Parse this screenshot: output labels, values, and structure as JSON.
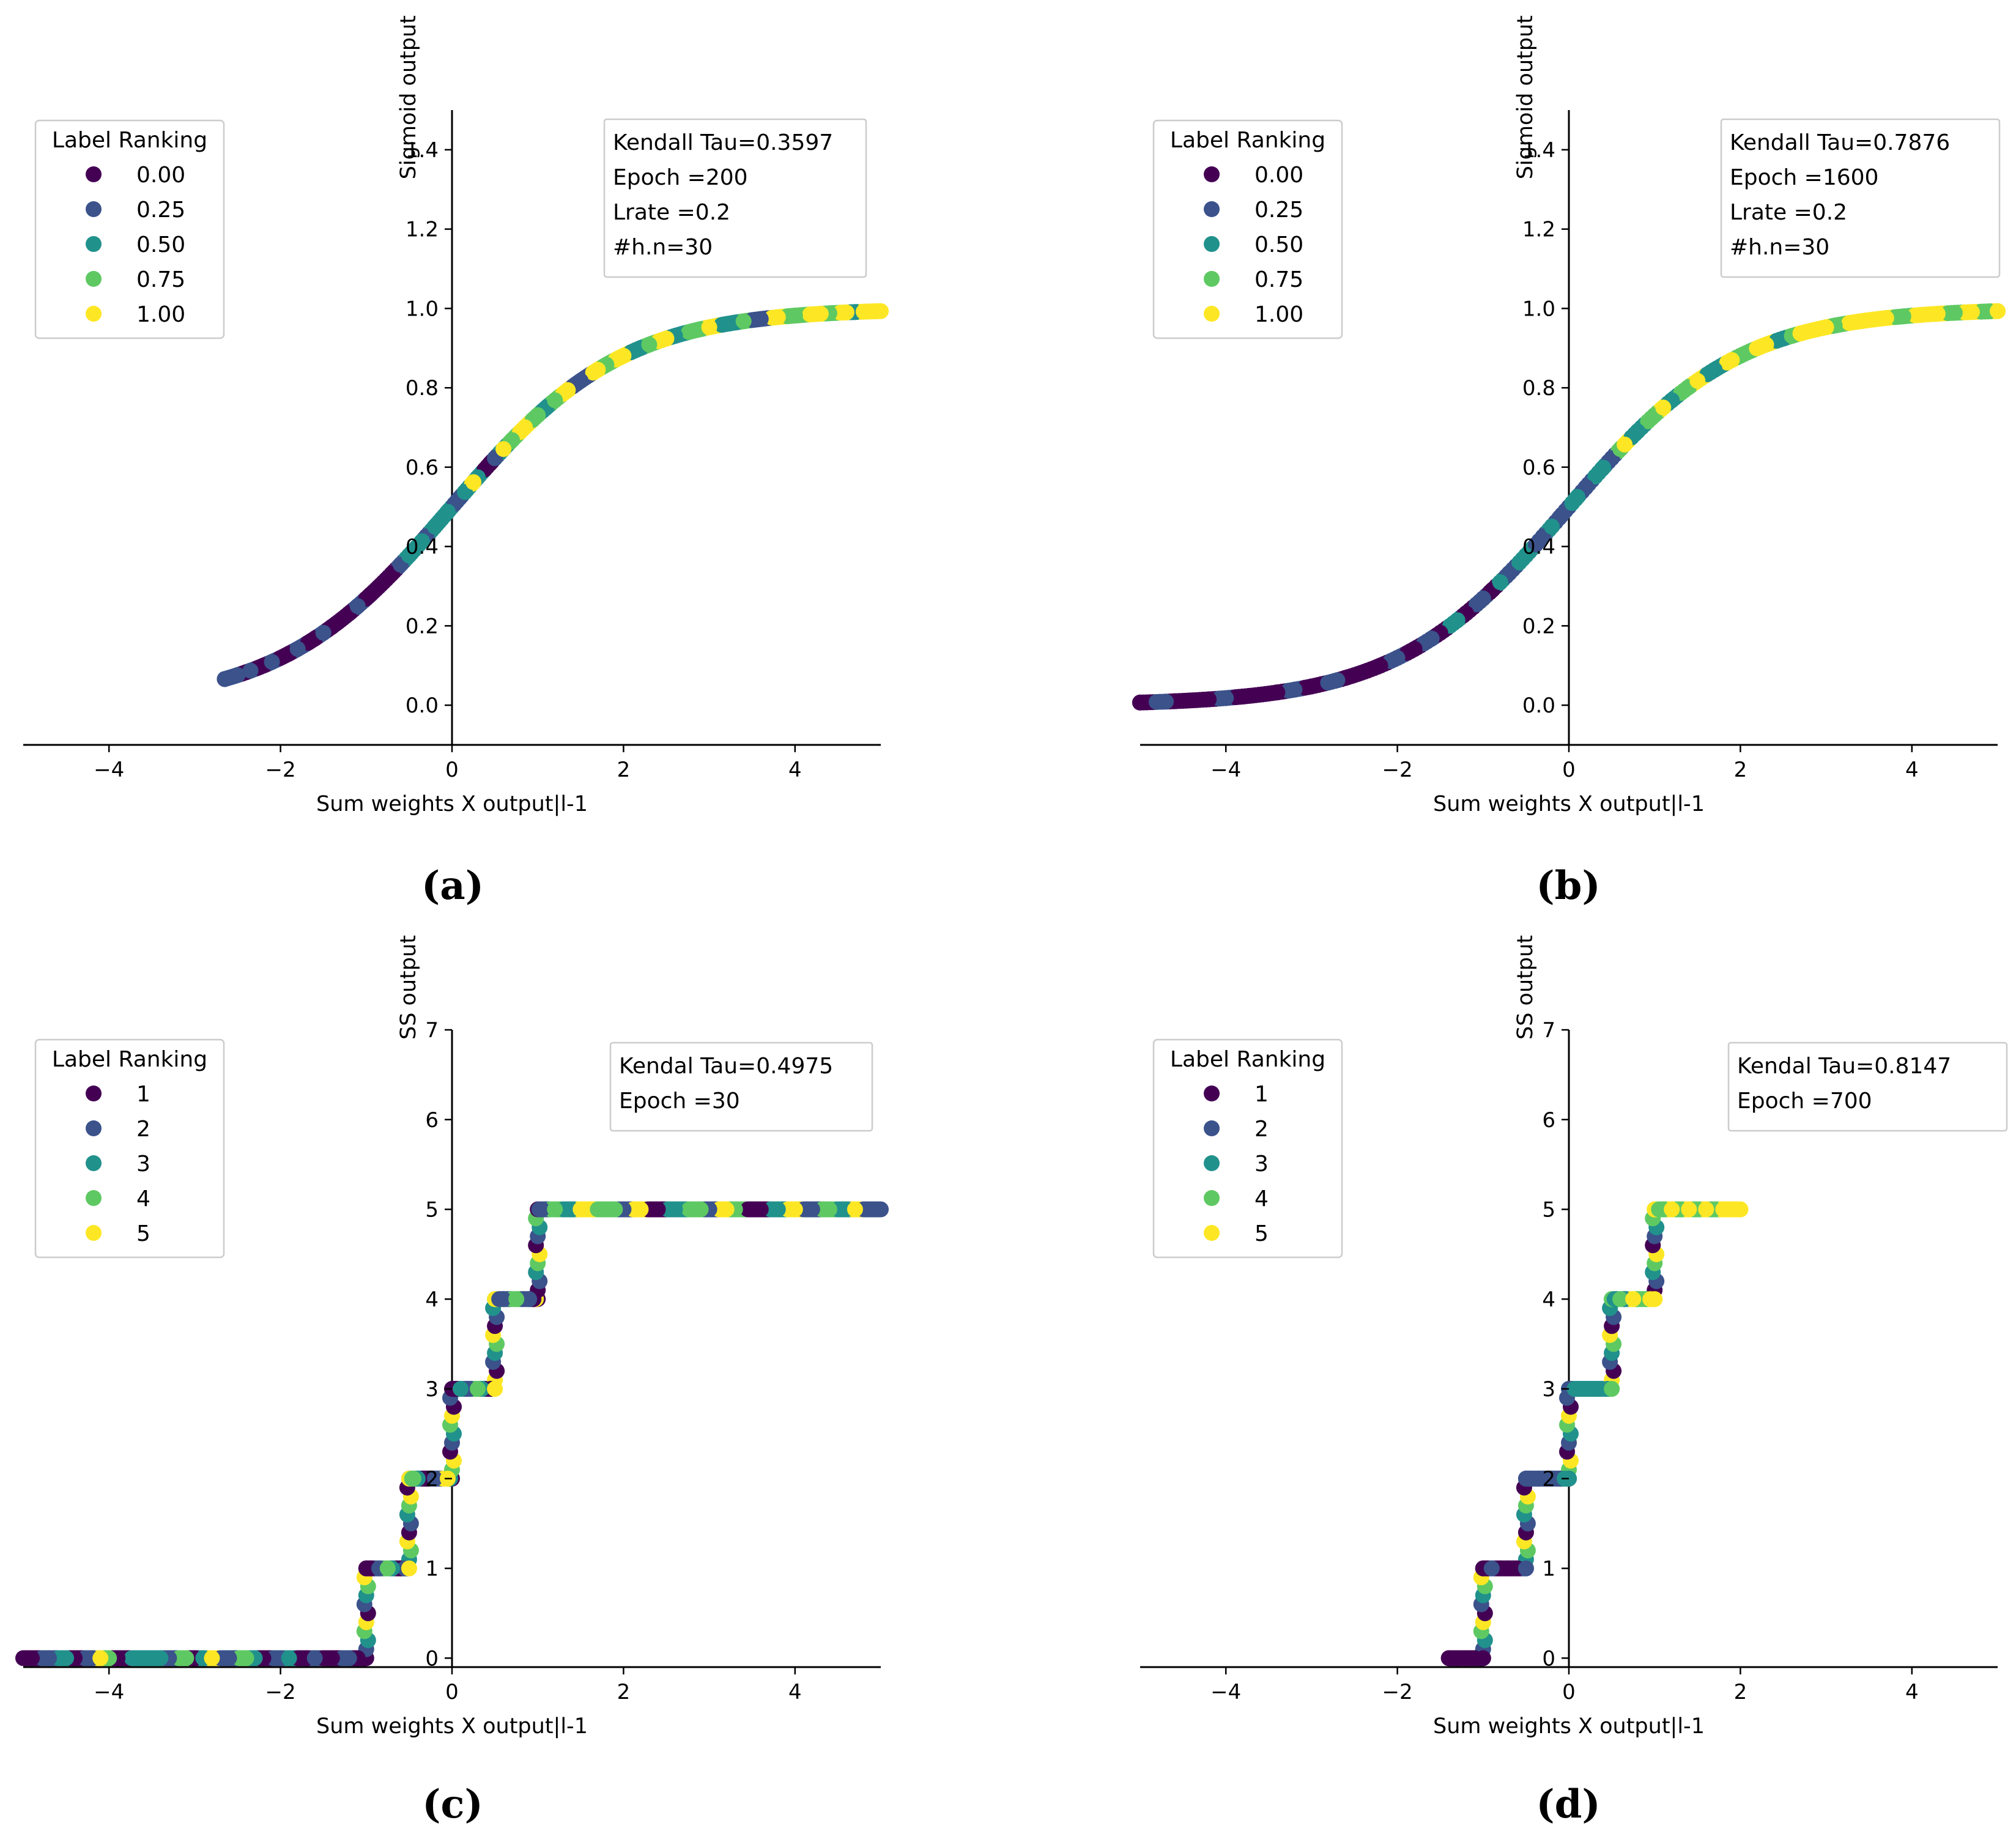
{
  "colors": {
    "viridis": [
      "#440154",
      "#3b528b",
      "#21918c",
      "#5ec962",
      "#fde725"
    ]
  },
  "chart_data": [
    {
      "panel": "(a)",
      "type": "scatter",
      "curve": "sigmoid",
      "ylabel": "Sigmoid output",
      "xlabel": "Sum weights X output|l-1",
      "xlim": [
        -5,
        5
      ],
      "ylim": [
        -0.1,
        1.5
      ],
      "xticks": [
        -4,
        -2,
        0,
        2,
        4
      ],
      "yticks": [
        0.0,
        0.2,
        0.4,
        0.6,
        0.8,
        1.0,
        1.2,
        1.4
      ],
      "ytick_format": 1,
      "legend": {
        "title": "Label Ranking",
        "entries": [
          "0.00",
          "0.25",
          "0.50",
          "0.75",
          "1.00"
        ]
      },
      "annotation": [
        "Kendall Tau=0.3597",
        "Epoch =200",
        "Lrate =0.2",
        "#h.n=30"
      ],
      "x_range_data": [
        -2.65,
        5.0
      ],
      "series": [
        {
          "name": "0.00",
          "x_samples": [
            -2.4,
            -2.2,
            -1.9,
            -1.6,
            -1.4,
            -1.2,
            -0.95,
            -0.7,
            0.45
          ]
        },
        {
          "name": "0.25",
          "x_samples": [
            -2.65,
            -2.5,
            -2.35,
            -2.1,
            -1.8,
            -1.5,
            -1.1,
            -0.6,
            -0.3,
            0.1,
            0.5,
            1.5,
            3.6
          ]
        },
        {
          "name": "0.50",
          "x_samples": [
            -0.5,
            -0.35,
            -0.2,
            -0.05,
            0.15,
            0.3,
            0.6,
            1.1,
            2.2,
            2.6,
            3.3,
            4.7
          ]
        },
        {
          "name": "0.75",
          "x_samples": [
            0.7,
            1.0,
            1.2,
            1.8,
            2.3,
            2.9,
            3.4,
            4.0,
            4.4
          ]
        },
        {
          "name": "1.00",
          "x_samples": [
            0.25,
            0.6,
            0.85,
            1.35,
            1.7,
            2.0,
            2.5,
            3.0,
            3.8,
            4.3,
            4.6,
            4.8,
            4.95
          ]
        }
      ]
    },
    {
      "panel": "(b)",
      "type": "scatter",
      "curve": "sigmoid",
      "ylabel": "Sigmoid output",
      "xlabel": "Sum weights X output|l-1",
      "xlim": [
        -5,
        5
      ],
      "ylim": [
        -0.1,
        1.5
      ],
      "xticks": [
        -4,
        -2,
        0,
        2,
        4
      ],
      "yticks": [
        0.0,
        0.2,
        0.4,
        0.6,
        0.8,
        1.0,
        1.2,
        1.4
      ],
      "ytick_format": 1,
      "legend": {
        "title": "Label Ranking",
        "entries": [
          "0.00",
          "0.25",
          "0.50",
          "0.75",
          "1.00"
        ]
      },
      "annotation": [
        "Kendall Tau=0.7876",
        "Epoch =1600",
        "Lrate =0.2",
        "#h.n=30"
      ],
      "x_range_data": [
        -5.0,
        5.0
      ],
      "series": [
        {
          "name": "0.00",
          "x_samples": [
            -5.0,
            -4.6,
            -4.2,
            -3.8,
            -3.4,
            -3.0,
            -2.6,
            -2.2,
            -1.8,
            -1.5,
            -1.2,
            -0.9
          ]
        },
        {
          "name": "0.25",
          "x_samples": [
            -4.7,
            -4.0,
            -3.2,
            -2.7,
            -2.0,
            -1.6,
            -1.0,
            -0.7,
            -0.3,
            -0.1,
            0.2,
            0.5
          ]
        },
        {
          "name": "0.50",
          "x_samples": [
            -1.3,
            -0.8,
            -0.5,
            -0.2,
            0.1,
            0.4,
            0.8,
            1.2,
            1.7,
            2.5
          ]
        },
        {
          "name": "0.75",
          "x_samples": [
            0.6,
            1.0,
            1.4,
            2.0,
            2.6,
            3.1,
            3.9,
            4.5,
            4.9
          ]
        },
        {
          "name": "1.00",
          "x_samples": [
            0.65,
            1.1,
            1.5,
            1.9,
            2.3,
            2.7,
            3.0,
            3.4,
            3.7,
            4.1,
            4.3,
            4.7,
            5.0
          ]
        }
      ]
    },
    {
      "panel": "(c)",
      "type": "scatter",
      "curve": "staircase",
      "ylabel": "SS output",
      "xlabel": "Sum weights X output|l-1",
      "xlim": [
        -5,
        5
      ],
      "ylim": [
        -0.1,
        7
      ],
      "xticks": [
        -4,
        -2,
        0,
        2,
        4
      ],
      "yticks": [
        0,
        1,
        2,
        3,
        4,
        5,
        6,
        7
      ],
      "ytick_format": 0,
      "legend": {
        "title": "Label Ranking",
        "entries": [
          "1",
          "2",
          "3",
          "4",
          "5"
        ]
      },
      "annotation": [
        "Kendal Tau=0.4975",
        "Epoch =30"
      ],
      "steps": [
        {
          "y": 0,
          "x": [
            -5.0,
            -1.0
          ]
        },
        {
          "y": 1,
          "x": [
            -1.0,
            -0.5
          ]
        },
        {
          "y": 2,
          "x": [
            -0.5,
            0.0
          ]
        },
        {
          "y": 3,
          "x": [
            0.0,
            0.5
          ]
        },
        {
          "y": 4,
          "x": [
            0.5,
            1.0
          ]
        },
        {
          "y": 5,
          "x": [
            1.0,
            5.0
          ]
        }
      ],
      "series": [
        {
          "name": "1",
          "x_samples": [
            -4.9,
            -4.4,
            -3.9,
            -3.0,
            -2.2,
            -1.7,
            -1.4,
            -1.1,
            -0.95,
            -0.6,
            -0.3,
            0.05,
            0.45,
            0.95,
            2.4,
            3.6
          ]
        },
        {
          "name": "2",
          "x_samples": [
            -4.7,
            -4.2,
            -3.3,
            -2.6,
            -2.0,
            -1.6,
            -1.2,
            -0.85,
            -0.55,
            -0.2,
            0.2,
            0.6,
            0.9,
            1.05,
            2.0,
            3.0,
            4.2,
            4.9
          ]
        },
        {
          "name": "3",
          "x_samples": [
            -4.5,
            -3.6,
            -3.4,
            -2.9,
            -2.3,
            -1.9,
            -0.7,
            -0.4,
            0.1,
            0.35,
            1.4,
            2.6,
            3.8,
            4.6
          ]
        },
        {
          "name": "4",
          "x_samples": [
            -4.0,
            -3.1,
            -2.4,
            -0.75,
            -0.45,
            0.3,
            0.75,
            1.2,
            1.9,
            2.9,
            3.3,
            4.4
          ]
        },
        {
          "name": "5",
          "x_samples": [
            -4.1,
            -2.8,
            -0.5,
            -0.05,
            0.5,
            1.5,
            2.2,
            3.2,
            4.0,
            4.7
          ]
        }
      ]
    },
    {
      "panel": "(d)",
      "type": "scatter",
      "curve": "staircase",
      "ylabel": "SS output",
      "xlabel": "Sum weights X output|l-1",
      "xlim": [
        -5,
        5
      ],
      "ylim": [
        -0.1,
        7
      ],
      "xticks": [
        -4,
        -2,
        0,
        2,
        4
      ],
      "yticks": [
        0,
        1,
        2,
        3,
        4,
        5,
        6,
        7
      ],
      "ytick_format": 0,
      "legend": {
        "title": "Label Ranking",
        "entries": [
          "1",
          "2",
          "3",
          "4",
          "5"
        ]
      },
      "annotation": [
        "Kendal Tau=0.8147",
        "Epoch =700"
      ],
      "steps": [
        {
          "y": 0,
          "x": [
            -1.4,
            -1.0
          ]
        },
        {
          "y": 1,
          "x": [
            -1.0,
            -0.5
          ]
        },
        {
          "y": 2,
          "x": [
            -0.5,
            0.0
          ]
        },
        {
          "y": 3,
          "x": [
            0.0,
            0.5
          ]
        },
        {
          "y": 4,
          "x": [
            0.5,
            1.0
          ]
        },
        {
          "y": 5,
          "x": [
            1.0,
            2.0
          ]
        }
      ],
      "series": [
        {
          "name": "1",
          "x_samples": [
            -1.4,
            -1.3,
            -1.2,
            -1.1,
            -1.0,
            -0.95,
            -0.8,
            -0.7,
            -0.6
          ]
        },
        {
          "name": "2",
          "x_samples": [
            -0.9,
            -0.5,
            -0.45,
            -0.35,
            -0.2,
            -0.1,
            0.0
          ]
        },
        {
          "name": "3",
          "x_samples": [
            -0.05,
            0.0,
            0.1,
            0.2,
            0.35,
            0.45,
            0.55,
            0.65
          ]
        },
        {
          "name": "4",
          "x_samples": [
            0.5,
            0.6,
            0.8,
            0.9,
            1.1,
            1.3,
            1.5,
            1.7
          ]
        },
        {
          "name": "5",
          "x_samples": [
            0.75,
            0.95,
            1.0,
            1.2,
            1.4,
            1.6,
            1.8,
            1.95,
            2.0
          ]
        }
      ]
    }
  ]
}
